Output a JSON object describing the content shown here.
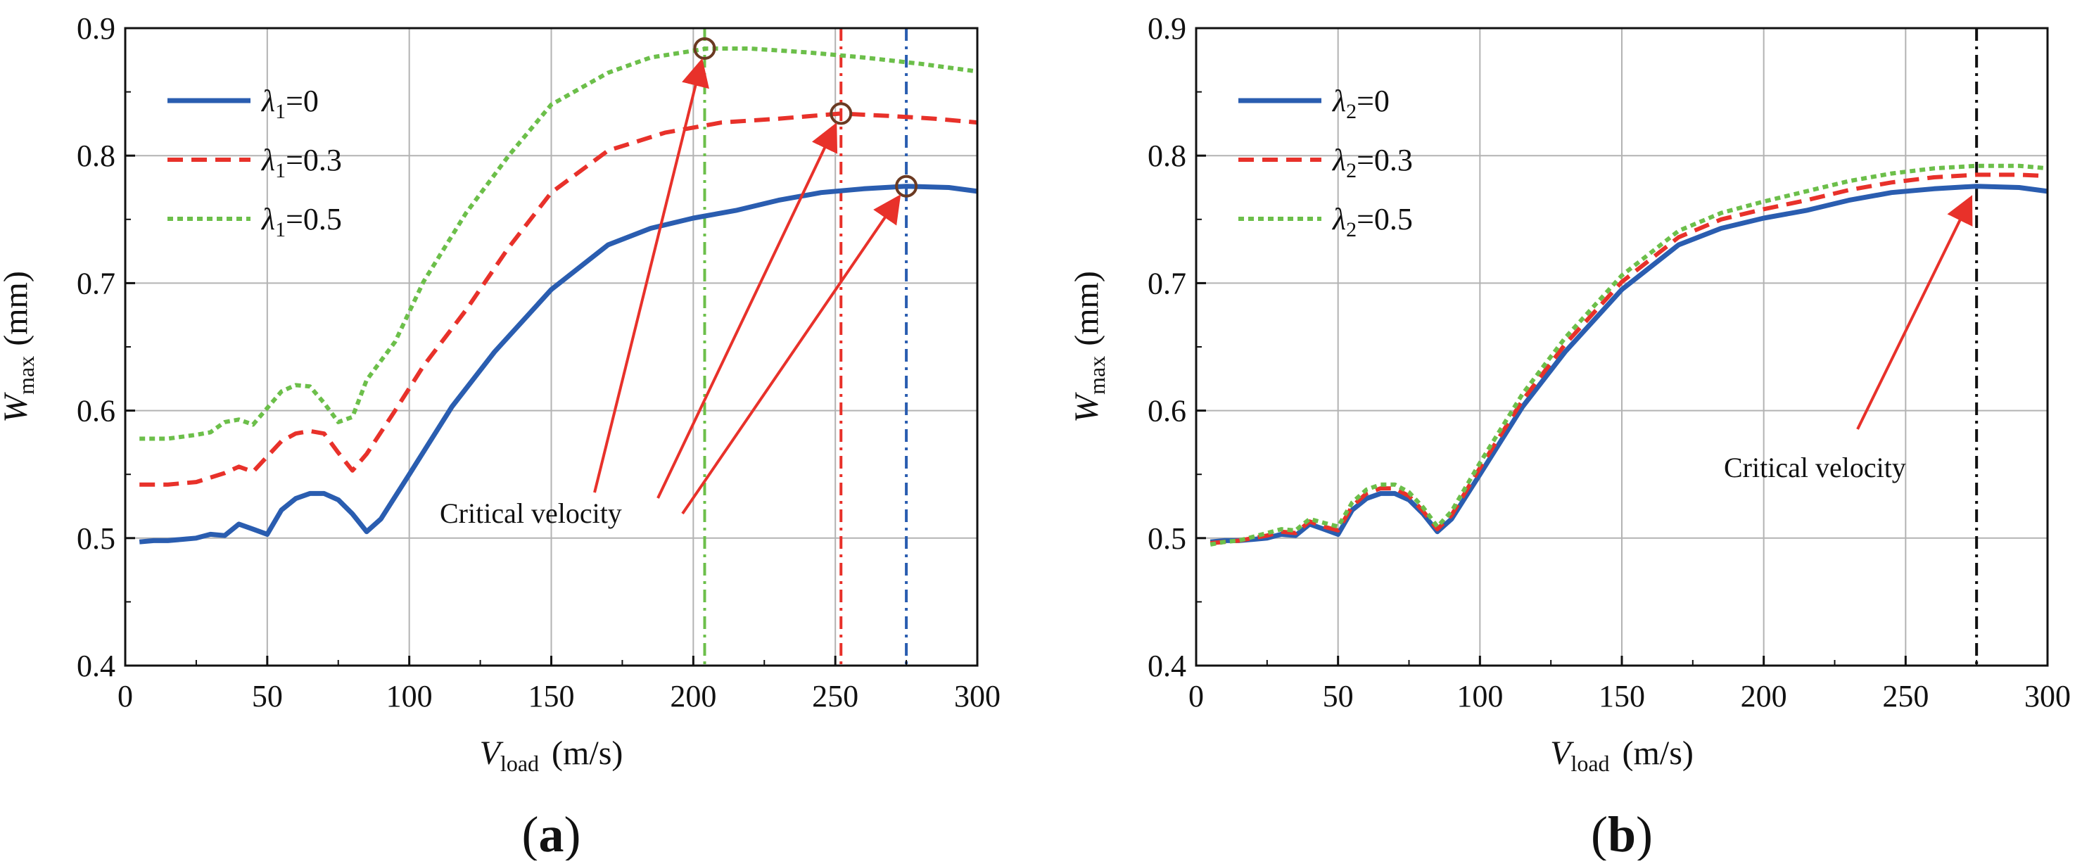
{
  "chart_data": [
    {
      "type": "line",
      "panel_label": "(a)",
      "xlabel": "V",
      "xlabel_sub": "load",
      "xlabel_unit": "(m/s)",
      "ylabel": "W",
      "ylabel_sub": "max",
      "ylabel_unit": "(mm)",
      "xlim": [
        0,
        300
      ],
      "ylim": [
        0.4,
        0.9
      ],
      "xticks": [
        "0",
        "50",
        "100",
        "150",
        "200",
        "250",
        "300"
      ],
      "yticks": [
        "0.4",
        "0.5",
        "0.6",
        "0.7",
        "0.8",
        "0.9"
      ],
      "grid": true,
      "legend_position": "top-left",
      "annotation": "Critical velocity",
      "series": [
        {
          "name_symbol": "λ",
          "name_sub": "1",
          "name_value": "=0",
          "color": "#2a5db0",
          "style": "solid",
          "x": [
            5,
            10,
            15,
            20,
            25,
            30,
            35,
            40,
            45,
            50,
            55,
            60,
            65,
            70,
            75,
            80,
            85,
            90,
            100,
            115,
            130,
            150,
            170,
            185,
            200,
            215,
            230,
            245,
            260,
            275,
            290,
            300
          ],
          "y": [
            0.497,
            0.498,
            0.498,
            0.499,
            0.5,
            0.503,
            0.502,
            0.511,
            0.507,
            0.503,
            0.522,
            0.531,
            0.535,
            0.535,
            0.53,
            0.519,
            0.505,
            0.515,
            0.55,
            0.603,
            0.646,
            0.695,
            0.73,
            0.743,
            0.751,
            0.757,
            0.765,
            0.771,
            0.774,
            0.776,
            0.775,
            0.772
          ]
        },
        {
          "name_symbol": "λ",
          "name_sub": "1",
          "name_value": "=0.3",
          "color": "#e8312a",
          "style": "dashed",
          "x": [
            5,
            15,
            25,
            35,
            40,
            45,
            50,
            55,
            60,
            65,
            70,
            75,
            80,
            85,
            95,
            105,
            120,
            135,
            150,
            170,
            190,
            210,
            230,
            252,
            270,
            285,
            300
          ],
          "y": [
            0.542,
            0.542,
            0.544,
            0.551,
            0.556,
            0.552,
            0.564,
            0.576,
            0.582,
            0.584,
            0.582,
            0.567,
            0.553,
            0.566,
            0.6,
            0.635,
            0.679,
            0.728,
            0.771,
            0.804,
            0.818,
            0.826,
            0.829,
            0.833,
            0.831,
            0.829,
            0.826
          ]
        },
        {
          "name_symbol": "λ",
          "name_sub": "1",
          "name_value": "=0.5",
          "color": "#6cbf4a",
          "style": "dotted",
          "x": [
            5,
            15,
            25,
            30,
            35,
            40,
            45,
            50,
            55,
            60,
            65,
            70,
            75,
            80,
            85,
            95,
            105,
            120,
            135,
            150,
            170,
            185,
            205,
            220,
            240,
            260,
            280,
            300
          ],
          "y": [
            0.578,
            0.578,
            0.581,
            0.583,
            0.591,
            0.593,
            0.589,
            0.602,
            0.615,
            0.62,
            0.619,
            0.606,
            0.591,
            0.595,
            0.624,
            0.654,
            0.701,
            0.755,
            0.8,
            0.84,
            0.865,
            0.877,
            0.884,
            0.884,
            0.881,
            0.877,
            0.872,
            0.866
          ]
        }
      ],
      "critical_velocities": [
        {
          "x": 204,
          "y": 0.884,
          "color": "#6cbf4a"
        },
        {
          "x": 252,
          "y": 0.833,
          "color": "#e8312a"
        },
        {
          "x": 275,
          "y": 0.776,
          "color": "#2a5db0"
        }
      ]
    },
    {
      "type": "line",
      "panel_label": "(b)",
      "xlabel": "V",
      "xlabel_sub": "load",
      "xlabel_unit": "(m/s)",
      "ylabel": "W",
      "ylabel_sub": "max",
      "ylabel_unit": "(mm)",
      "xlim": [
        0,
        300
      ],
      "ylim": [
        0.4,
        0.9
      ],
      "xticks": [
        "0",
        "50",
        "100",
        "150",
        "200",
        "250",
        "300"
      ],
      "yticks": [
        "0.4",
        "0.5",
        "0.6",
        "0.7",
        "0.8",
        "0.9"
      ],
      "grid": true,
      "legend_position": "top-left",
      "annotation": "Critical velocity",
      "series": [
        {
          "name_symbol": "λ",
          "name_sub": "2",
          "name_value": "=0",
          "color": "#2a5db0",
          "style": "solid",
          "x": [
            5,
            10,
            15,
            20,
            25,
            30,
            35,
            40,
            45,
            50,
            55,
            60,
            65,
            70,
            75,
            80,
            85,
            90,
            100,
            115,
            130,
            150,
            170,
            185,
            200,
            215,
            230,
            245,
            260,
            275,
            290,
            300
          ],
          "y": [
            0.497,
            0.498,
            0.498,
            0.499,
            0.5,
            0.503,
            0.502,
            0.511,
            0.507,
            0.503,
            0.522,
            0.531,
            0.535,
            0.535,
            0.53,
            0.519,
            0.505,
            0.515,
            0.55,
            0.603,
            0.646,
            0.695,
            0.73,
            0.743,
            0.751,
            0.757,
            0.765,
            0.771,
            0.774,
            0.776,
            0.775,
            0.772
          ]
        },
        {
          "name_symbol": "λ",
          "name_sub": "2",
          "name_value": "=0.3",
          "color": "#e8312a",
          "style": "dashed",
          "x": [
            5,
            10,
            15,
            20,
            25,
            30,
            35,
            40,
            45,
            50,
            55,
            60,
            65,
            70,
            75,
            80,
            85,
            90,
            100,
            115,
            130,
            150,
            170,
            185,
            200,
            215,
            230,
            245,
            260,
            275,
            290,
            300
          ],
          "y": [
            0.496,
            0.497,
            0.498,
            0.5,
            0.502,
            0.505,
            0.504,
            0.513,
            0.509,
            0.506,
            0.525,
            0.535,
            0.539,
            0.539,
            0.533,
            0.521,
            0.507,
            0.518,
            0.555,
            0.608,
            0.652,
            0.701,
            0.736,
            0.75,
            0.758,
            0.765,
            0.773,
            0.779,
            0.783,
            0.785,
            0.785,
            0.784
          ]
        },
        {
          "name_symbol": "λ",
          "name_sub": "2",
          "name_value": "=0.5",
          "color": "#6cbf4a",
          "style": "dotted",
          "x": [
            5,
            10,
            15,
            20,
            25,
            30,
            35,
            40,
            45,
            50,
            55,
            60,
            65,
            70,
            75,
            80,
            85,
            90,
            100,
            115,
            130,
            150,
            170,
            185,
            200,
            215,
            230,
            245,
            260,
            275,
            290,
            300
          ],
          "y": [
            0.495,
            0.497,
            0.498,
            0.501,
            0.504,
            0.507,
            0.506,
            0.515,
            0.512,
            0.509,
            0.528,
            0.538,
            0.542,
            0.542,
            0.536,
            0.524,
            0.509,
            0.521,
            0.559,
            0.613,
            0.657,
            0.706,
            0.741,
            0.755,
            0.764,
            0.772,
            0.78,
            0.786,
            0.79,
            0.792,
            0.792,
            0.79
          ]
        }
      ],
      "critical_velocities": [
        {
          "x": 275,
          "y": 0.776,
          "color": "#111111"
        }
      ]
    }
  ]
}
